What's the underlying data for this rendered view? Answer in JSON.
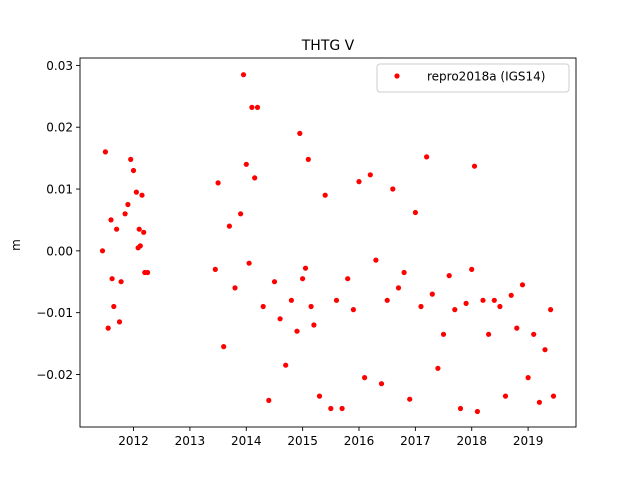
{
  "chart_data": {
    "type": "scatter",
    "title": "THTG V",
    "xlabel": "",
    "ylabel": "m",
    "xlim": [
      2011.05,
      2019.85
    ],
    "ylim": [
      -0.0285,
      0.0312
    ],
    "xticks": [
      2012,
      2013,
      2014,
      2015,
      2016,
      2017,
      2018,
      2019
    ],
    "xtick_labels": [
      "2012",
      "2013",
      "2014",
      "2015",
      "2016",
      "2017",
      "2018",
      "2019"
    ],
    "yticks": [
      -0.02,
      -0.01,
      0.0,
      0.01,
      0.02,
      0.03
    ],
    "ytick_labels": [
      "−0.02",
      "−0.01",
      "0.00",
      "0.01",
      "0.02",
      "0.03"
    ],
    "grid": false,
    "legend_position": "top-right",
    "series": [
      {
        "name": "repro2018a (IGS14)",
        "color": "#ff0000",
        "marker": "circle",
        "x": [
          2011.45,
          2011.5,
          2011.55,
          2011.6,
          2011.62,
          2011.65,
          2011.7,
          2011.75,
          2011.78,
          2011.85,
          2011.9,
          2011.95,
          2012.0,
          2012.05,
          2012.08,
          2012.1,
          2012.12,
          2012.15,
          2012.18,
          2012.2,
          2012.25,
          2013.45,
          2013.5,
          2013.6,
          2013.7,
          2013.8,
          2013.9,
          2013.95,
          2014.0,
          2014.05,
          2014.1,
          2014.15,
          2014.2,
          2014.3,
          2014.4,
          2014.5,
          2014.6,
          2014.7,
          2014.8,
          2014.9,
          2014.95,
          2015.0,
          2015.05,
          2015.1,
          2015.15,
          2015.2,
          2015.3,
          2015.4,
          2015.5,
          2015.6,
          2015.7,
          2015.8,
          2015.9,
          2016.0,
          2016.1,
          2016.2,
          2016.3,
          2016.4,
          2016.5,
          2016.6,
          2016.7,
          2016.8,
          2016.9,
          2017.0,
          2017.1,
          2017.2,
          2017.3,
          2017.4,
          2017.5,
          2017.6,
          2017.7,
          2017.8,
          2017.9,
          2018.0,
          2018.05,
          2018.1,
          2018.2,
          2018.3,
          2018.4,
          2018.5,
          2018.6,
          2018.7,
          2018.8,
          2018.9,
          2019.0,
          2019.1,
          2019.2,
          2019.3,
          2019.4,
          2019.45
        ],
        "y": [
          0.0,
          0.016,
          -0.0125,
          0.005,
          -0.0045,
          -0.009,
          0.0035,
          -0.0115,
          -0.005,
          0.006,
          0.0075,
          0.0148,
          0.013,
          0.0095,
          0.0005,
          0.0035,
          0.0008,
          0.009,
          0.003,
          -0.0035,
          -0.0035,
          -0.003,
          0.011,
          -0.0155,
          0.004,
          -0.006,
          0.006,
          0.0285,
          0.014,
          -0.002,
          0.0232,
          0.0118,
          0.0232,
          -0.009,
          -0.0242,
          -0.005,
          -0.011,
          -0.0185,
          -0.008,
          -0.013,
          0.019,
          -0.0045,
          -0.0028,
          0.0148,
          -0.009,
          -0.012,
          -0.0235,
          0.009,
          -0.0255,
          -0.008,
          -0.0255,
          -0.0045,
          -0.0095,
          0.0112,
          -0.0205,
          0.0123,
          -0.0015,
          -0.0215,
          -0.008,
          0.01,
          -0.006,
          -0.0035,
          -0.024,
          0.0062,
          -0.009,
          0.0152,
          -0.007,
          -0.019,
          -0.0135,
          -0.004,
          -0.0095,
          -0.0255,
          -0.0085,
          -0.003,
          0.0137,
          -0.026,
          -0.008,
          -0.0135,
          -0.008,
          -0.009,
          -0.0235,
          -0.0072,
          -0.0125,
          -0.0055,
          -0.0205,
          -0.0135,
          -0.0245,
          -0.016,
          -0.0095,
          -0.0235
        ]
      }
    ]
  }
}
